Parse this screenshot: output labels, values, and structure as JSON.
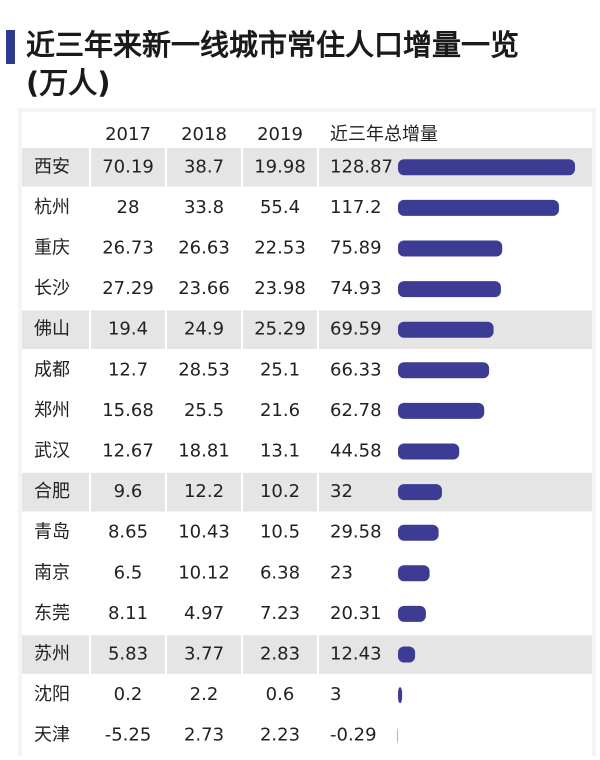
{
  "title": "近三年来新一线城市常住人口增量一览(万人)",
  "table": {
    "header": [
      "2017",
      "2018",
      "2019",
      "近三年总增量"
    ],
    "rows": [
      [
        "西安",
        70.19,
        38.7,
        19.98,
        128.87
      ],
      [
        "杭州",
        28,
        33.8,
        55.4,
        117.2
      ],
      [
        "重庆",
        26.73,
        26.63,
        22.53,
        75.89
      ],
      [
        "长沙",
        27.29,
        23.66,
        23.98,
        74.93
      ],
      [
        "佛山",
        19.4,
        24.9,
        25.29,
        69.59
      ],
      [
        "成都",
        12.7,
        28.53,
        25.1,
        66.33
      ],
      [
        "郑州",
        15.68,
        25.5,
        21.6,
        62.78
      ],
      [
        "武汉",
        12.67,
        18.81,
        13.1,
        44.58
      ],
      [
        "合肥",
        9.6,
        12.2,
        10.2,
        32
      ],
      [
        "青岛",
        8.65,
        10.43,
        10.5,
        29.58
      ],
      [
        "南京",
        6.5,
        10.12,
        6.38,
        23
      ],
      [
        "东莞",
        8.11,
        4.97,
        7.23,
        20.31
      ],
      [
        "苏州",
        5.83,
        3.77,
        2.83,
        12.43
      ],
      [
        "沈阳",
        0.2,
        2.2,
        0.6,
        3
      ],
      [
        "天津",
        -5.25,
        2.73,
        2.23,
        -0.29
      ]
    ],
    "bar_color": "#3c3c94"
  }
}
